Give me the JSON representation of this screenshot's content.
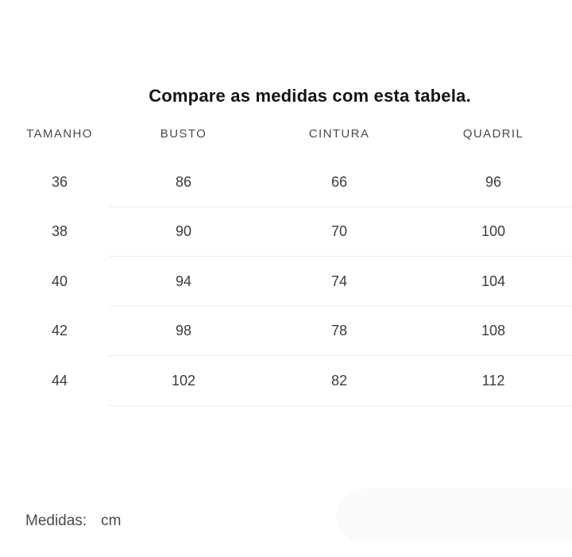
{
  "title": "Compare as medidas com esta tabela.",
  "size_table": {
    "headers": {
      "tamanho": "TAMANHO",
      "busto": "BUSTO",
      "cintura": "CINTURA",
      "quadril": "QUADRIL"
    },
    "rows": [
      {
        "tamanho": "36",
        "busto": "86",
        "cintura": "66",
        "quadril": "96"
      },
      {
        "tamanho": "38",
        "busto": "90",
        "cintura": "70",
        "quadril": "100"
      },
      {
        "tamanho": "40",
        "busto": "94",
        "cintura": "74",
        "quadril": "104"
      },
      {
        "tamanho": "42",
        "busto": "98",
        "cintura": "78",
        "quadril": "108"
      },
      {
        "tamanho": "44",
        "busto": "102",
        "cintura": "82",
        "quadril": "112"
      }
    ]
  },
  "footer": {
    "label": "Medidas:",
    "unit": "cm"
  },
  "colors": {
    "background": "#ffffff",
    "title_text": "#141414",
    "header_text": "#4a4a4a",
    "cell_text": "#3c3c3c",
    "footer_text": "#4a4a4a",
    "row_separator": "#ececec",
    "panel_background": "#fafafa"
  }
}
